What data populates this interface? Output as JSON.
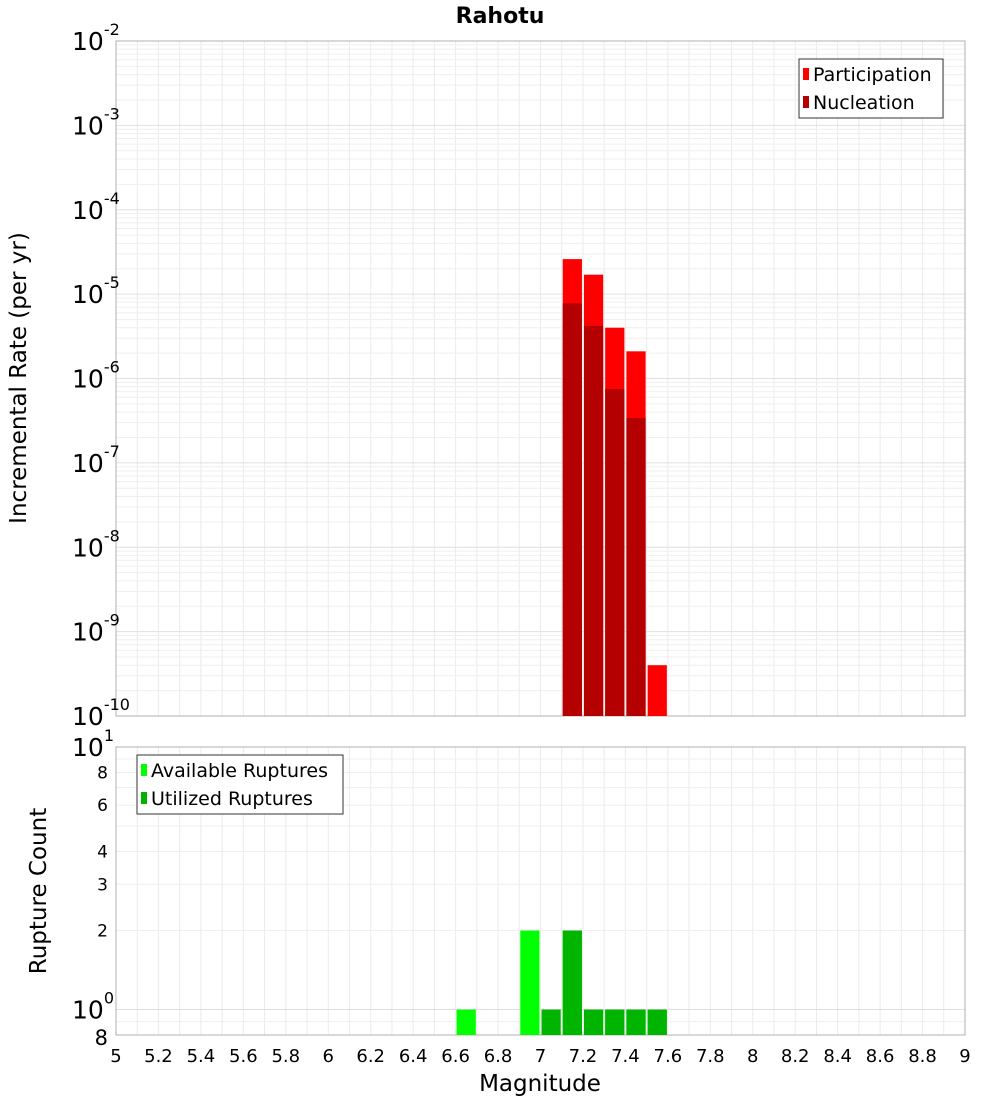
{
  "chart_data": [
    {
      "type": "bar",
      "title": "Rahotu",
      "xlabel": "",
      "ylabel": "Incremental Rate (per yr)",
      "yscale": "log",
      "ylim": [
        1e-10,
        0.01
      ],
      "xlim": [
        5,
        9
      ],
      "bar_width": 0.1,
      "grid": true,
      "legend_position": "top-right",
      "y_tick_labels": [
        {
          "value": 0.01,
          "base": "10",
          "exp": "-2"
        },
        {
          "value": 0.001,
          "base": "10",
          "exp": "-3"
        },
        {
          "value": 0.0001,
          "base": "10",
          "exp": "-4"
        },
        {
          "value": 1e-05,
          "base": "10",
          "exp": "-5"
        },
        {
          "value": 1e-06,
          "base": "10",
          "exp": "-6"
        },
        {
          "value": 1e-07,
          "base": "10",
          "exp": "-7"
        },
        {
          "value": 1e-08,
          "base": "10",
          "exp": "-8"
        },
        {
          "value": 1e-09,
          "base": "10",
          "exp": "-9"
        },
        {
          "value": 1e-10,
          "base": "10",
          "exp": "-10"
        }
      ],
      "series": [
        {
          "name": "Participation",
          "color": "#ff0000",
          "x": [
            7.15,
            7.25,
            7.35,
            7.45,
            7.55
          ],
          "values": [
            2.6e-05,
            1.7e-05,
            4e-06,
            2.1e-06,
            4e-10
          ]
        },
        {
          "name": "Nucleation",
          "color": "#b40000",
          "x": [
            7.15,
            7.25,
            7.35,
            7.45
          ],
          "values": [
            7.8e-06,
            4.2e-06,
            7.5e-07,
            3.4e-07
          ]
        }
      ]
    },
    {
      "type": "bar",
      "title": "",
      "xlabel": "Magnitude",
      "ylabel": "Rupture Count",
      "yscale": "log",
      "ylim": [
        0.8,
        10
      ],
      "xlim": [
        5,
        9
      ],
      "bar_width": 0.1,
      "grid": true,
      "legend_position": "top-left",
      "x_tick_labels": [
        "5",
        "5.2",
        "5.4",
        "5.6",
        "5.8",
        "6",
        "6.2",
        "6.4",
        "6.6",
        "6.8",
        "7",
        "7.2",
        "7.4",
        "7.6",
        "7.8",
        "8",
        "8.2",
        "8.4",
        "8.6",
        "8.8",
        "9"
      ],
      "y_tick_labels": [
        {
          "value": 10,
          "base": "10",
          "exp": "1"
        },
        {
          "value": 8,
          "base": "8",
          "exp": ""
        },
        {
          "value": 6,
          "base": "6",
          "exp": ""
        },
        {
          "value": 4,
          "base": "4",
          "exp": ""
        },
        {
          "value": 3,
          "base": "3",
          "exp": ""
        },
        {
          "value": 2,
          "base": "2",
          "exp": ""
        },
        {
          "value": 1,
          "base": "10",
          "exp": "0"
        },
        {
          "value": 0.8,
          "base": "8",
          "exp": ""
        }
      ],
      "series": [
        {
          "name": "Available Ruptures",
          "color": "#00ff00",
          "x": [
            6.65,
            6.95,
            7.15,
            7.25,
            7.35,
            7.45,
            7.55
          ],
          "values": [
            1,
            2,
            2,
            1,
            1,
            1,
            1
          ]
        },
        {
          "name": "Utilized Ruptures",
          "color": "#00b400",
          "x": [
            7.05,
            7.15,
            7.25,
            7.35,
            7.45,
            7.55
          ],
          "values": [
            1,
            2,
            1,
            1,
            1,
            1
          ]
        }
      ]
    }
  ]
}
